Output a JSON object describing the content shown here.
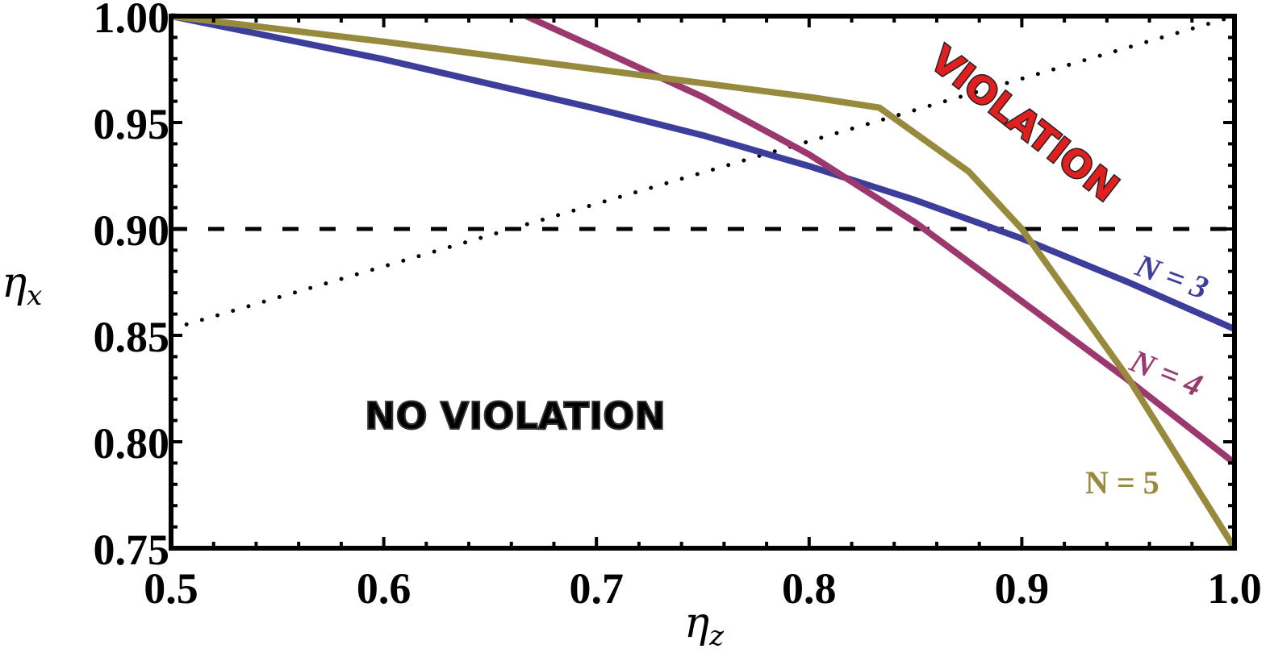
{
  "chart_data": {
    "type": "line",
    "title": "",
    "xlabel": "η_z",
    "ylabel": "η_x",
    "xlabel_main": "η",
    "xlabel_sub": "z",
    "ylabel_main": "η",
    "ylabel_sub": "x",
    "xlim": [
      0.5,
      1.0
    ],
    "ylim": [
      0.75,
      1.0
    ],
    "grid": false,
    "legend": "inline labels",
    "x_ticks": [
      "0.5",
      "0.6",
      "0.7",
      "0.8",
      "0.9",
      "1.0"
    ],
    "y_ticks": [
      "0.75",
      "0.80",
      "0.85",
      "0.90",
      "0.95",
      "1.00"
    ],
    "series": [
      {
        "name": "N = 3",
        "color": "#3d3d9b",
        "x": [
          0.5,
          0.6,
          0.7,
          0.75,
          0.8,
          0.85,
          0.9,
          0.95,
          1.0
        ],
        "y": [
          1.0,
          0.9797,
          0.9565,
          0.944,
          0.9295,
          0.9135,
          0.8955,
          0.875,
          0.853
        ]
      },
      {
        "name": "N = 4",
        "color": "#9b386e",
        "x": [
          0.667,
          0.7,
          0.75,
          0.8,
          0.85,
          0.9,
          0.95,
          1.0
        ],
        "y": [
          1.0,
          0.985,
          0.962,
          0.935,
          0.903,
          0.866,
          0.829,
          0.79
        ]
      },
      {
        "name": "N = 5",
        "color": "#978a3c",
        "x": [
          0.5,
          0.6,
          0.7,
          0.8,
          0.833,
          0.875,
          0.9,
          0.95,
          1.0
        ],
        "y": [
          1.0,
          0.988,
          0.975,
          0.962,
          0.957,
          0.927,
          0.9,
          0.83,
          0.75
        ]
      }
    ],
    "reference_lines": [
      {
        "name": "dashed threshold",
        "style": "dashed",
        "x": [
          0.5,
          1.0
        ],
        "y": [
          0.9,
          0.9
        ]
      },
      {
        "name": "dotted boundary",
        "style": "dotted",
        "x": [
          0.5,
          1.0
        ],
        "y": [
          0.853,
          1.0
        ]
      }
    ],
    "annotations": [
      {
        "text": "VIOLATION",
        "x": 0.86,
        "y": 0.96,
        "color": "#e02020",
        "rotation": 38
      },
      {
        "text": "NO VIOLATION",
        "x": 0.67,
        "y": 0.81,
        "color": "#000000"
      },
      {
        "text": "N = 3",
        "x": 0.955,
        "y": 0.875,
        "color": "#3d3d9b"
      },
      {
        "text": "N = 4",
        "x": 0.955,
        "y": 0.831,
        "color": "#9b386e"
      },
      {
        "text": "N = 5",
        "x": 0.935,
        "y": 0.785,
        "color": "#978a3c"
      }
    ]
  }
}
